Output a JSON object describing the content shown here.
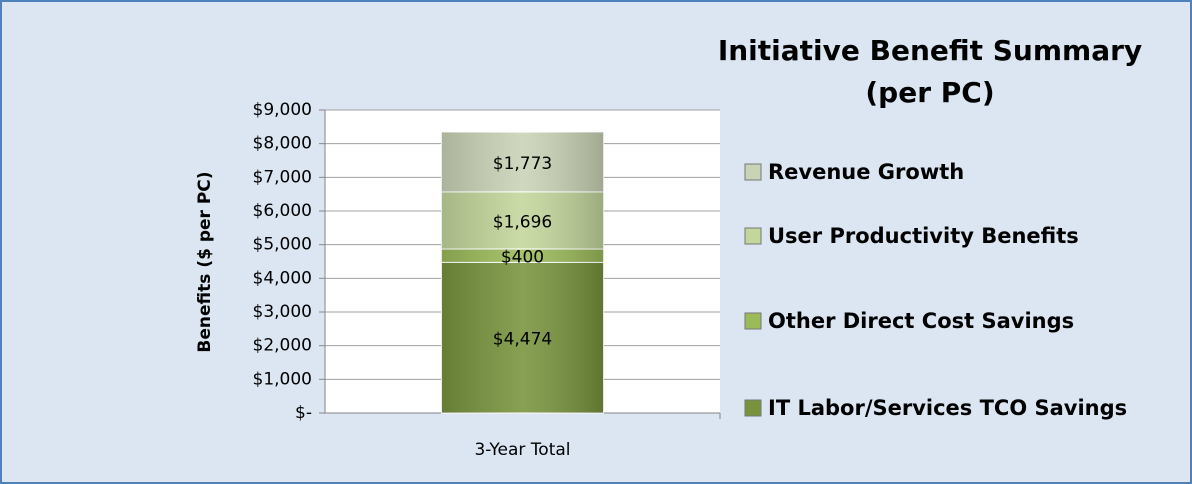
{
  "chart_data": {
    "type": "stacked_bar",
    "title": "Initiative Benefit Summary (per PC)",
    "y_label": "Benefits ($ per PC)",
    "categories": [
      "3-Year Total"
    ],
    "series": [
      {
        "name": "IT Labor/Services TCO Savings",
        "color": "#77933c",
        "values": [
          4474
        ],
        "value_labels": [
          "$4,474"
        ]
      },
      {
        "name": "Other Direct Cost Savings",
        "color": "#9bbb59",
        "values": [
          400
        ],
        "value_labels": [
          "$400"
        ]
      },
      {
        "name": "User Productivity Benefits",
        "color": "#c3d69b",
        "values": [
          1696
        ],
        "value_labels": [
          "$1,696"
        ]
      },
      {
        "name": "Revenue Growth",
        "color": "#c9d3b6",
        "values": [
          1773
        ],
        "value_labels": [
          "$1,773"
        ]
      }
    ],
    "ylim": [
      0,
      9000
    ],
    "yticks": [
      {
        "value": 0,
        "label": "$-"
      },
      {
        "value": 1000,
        "label": "$1,000"
      },
      {
        "value": 2000,
        "label": "$2,000"
      },
      {
        "value": 3000,
        "label": "$3,000"
      },
      {
        "value": 4000,
        "label": "$4,000"
      },
      {
        "value": 5000,
        "label": "$5,000"
      },
      {
        "value": 6000,
        "label": "$6,000"
      },
      {
        "value": 7000,
        "label": "$7,000"
      },
      {
        "value": 8000,
        "label": "$8,000"
      },
      {
        "value": 9000,
        "label": "$9,000"
      }
    ],
    "grid": true,
    "legend": "right"
  }
}
